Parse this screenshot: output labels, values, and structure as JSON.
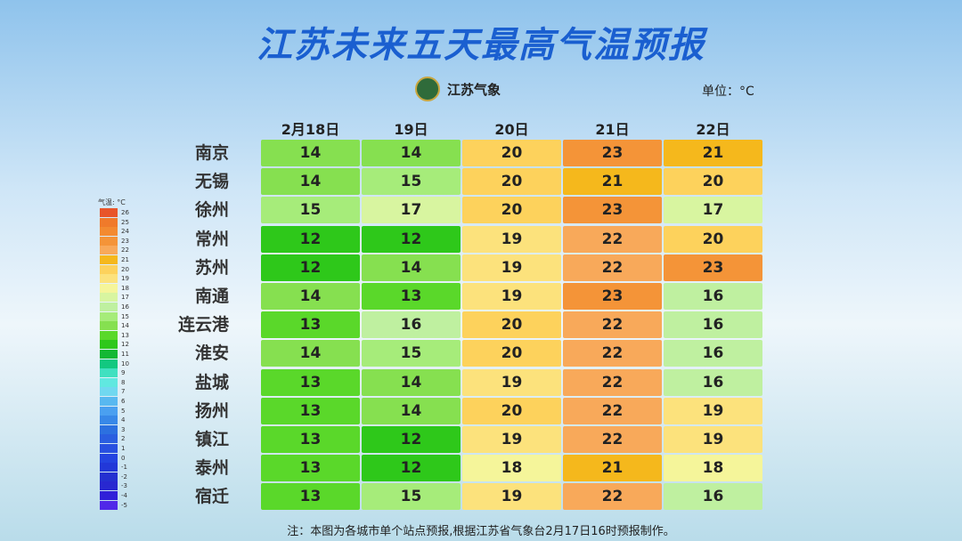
{
  "header": {
    "title": "江苏未来五天最高气温预报",
    "logo_text": "江苏气象",
    "unit": "单位：°C"
  },
  "table": {
    "columns": [
      "2月18日",
      "19日",
      "20日",
      "21日",
      "22日"
    ],
    "rows": [
      {
        "city": "南京",
        "values": [
          14,
          14,
          20,
          23,
          21
        ]
      },
      {
        "city": "无锡",
        "values": [
          14,
          15,
          20,
          21,
          20
        ]
      },
      {
        "city": "徐州",
        "values": [
          15,
          17,
          20,
          23,
          17
        ]
      },
      {
        "city": "常州",
        "values": [
          12,
          12,
          19,
          22,
          20
        ]
      },
      {
        "city": "苏州",
        "values": [
          12,
          14,
          19,
          22,
          23
        ]
      },
      {
        "city": "南通",
        "values": [
          14,
          13,
          19,
          23,
          16
        ]
      },
      {
        "city": "连云港",
        "values": [
          13,
          16,
          20,
          22,
          16
        ]
      },
      {
        "city": "淮安",
        "values": [
          14,
          15,
          20,
          22,
          16
        ]
      },
      {
        "city": "盐城",
        "values": [
          13,
          14,
          19,
          22,
          16
        ]
      },
      {
        "city": "扬州",
        "values": [
          13,
          14,
          20,
          22,
          19
        ]
      },
      {
        "city": "镇江",
        "values": [
          13,
          12,
          19,
          22,
          19
        ]
      },
      {
        "city": "泰州",
        "values": [
          13,
          12,
          18,
          21,
          18
        ]
      },
      {
        "city": "宿迁",
        "values": [
          13,
          15,
          19,
          22,
          16
        ]
      }
    ]
  },
  "legend": {
    "title": "气温: °C",
    "levels": [
      {
        "value": 26,
        "color": "#e8552a"
      },
      {
        "value": 25,
        "color": "#f07a2a"
      },
      {
        "value": 24,
        "color": "#f38a30"
      },
      {
        "value": 23,
        "color": "#f49438"
      },
      {
        "value": 22,
        "color": "#f8a95a"
      },
      {
        "value": 21,
        "color": "#f5b81c"
      },
      {
        "value": 20,
        "color": "#fdd25c"
      },
      {
        "value": 19,
        "color": "#fce27c"
      },
      {
        "value": 18,
        "color": "#f5f59a"
      },
      {
        "value": 17,
        "color": "#d8f5a0"
      },
      {
        "value": 16,
        "color": "#bff0a0"
      },
      {
        "value": 15,
        "color": "#a6ec7a"
      },
      {
        "value": 14,
        "color": "#86e050"
      },
      {
        "value": 13,
        "color": "#5ad82a"
      },
      {
        "value": 12,
        "color": "#2ec81a"
      },
      {
        "value": 11,
        "color": "#14b834"
      },
      {
        "value": 10,
        "color": "#12c880"
      },
      {
        "value": 9,
        "color": "#40e0c0"
      },
      {
        "value": 8,
        "color": "#60e8e0"
      },
      {
        "value": 7,
        "color": "#70d8f0"
      },
      {
        "value": 6,
        "color": "#58b8f0"
      },
      {
        "value": 5,
        "color": "#4aa0f0"
      },
      {
        "value": 4,
        "color": "#3888e8"
      },
      {
        "value": 3,
        "color": "#2c70e0"
      },
      {
        "value": 2,
        "color": "#2a5ee0"
      },
      {
        "value": 1,
        "color": "#2850e0"
      },
      {
        "value": 0,
        "color": "#2444e0"
      },
      {
        "value": -1,
        "color": "#2238d8"
      },
      {
        "value": -2,
        "color": "#2430d0"
      },
      {
        "value": -3,
        "color": "#2828d0"
      },
      {
        "value": -4,
        "color": "#3020d8"
      },
      {
        "value": -5,
        "color": "#5028e8"
      }
    ]
  },
  "note": "注：本图为各城市单个站点预报,根据江苏省气象台2月17日16时预报制作。"
}
